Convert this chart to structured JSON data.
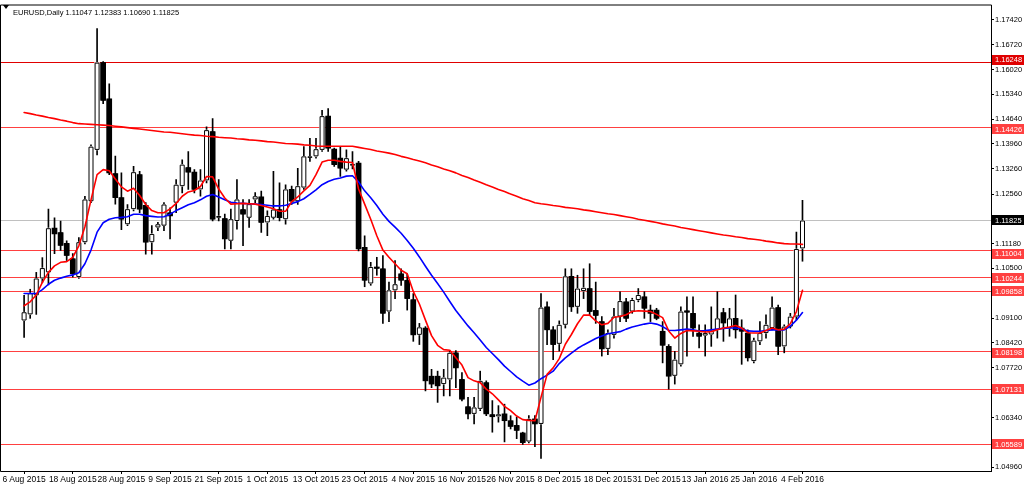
{
  "chart_data": {
    "type": "candlestick",
    "title": "EURUSD,Daily 1.11047 1.12383 1.10690 1.11825",
    "categories": [
      "6 Aug 2015",
      null,
      null,
      null,
      null,
      null,
      null,
      null,
      "18 Aug 2015",
      null,
      null,
      null,
      null,
      null,
      null,
      null,
      "28 Aug 2015",
      null,
      null,
      null,
      null,
      null,
      null,
      null,
      "9 Sep 2015",
      null,
      null,
      null,
      null,
      null,
      null,
      null,
      "21 Sep 2015",
      null,
      null,
      null,
      null,
      null,
      null,
      null,
      "1 Oct 2015",
      null,
      null,
      null,
      null,
      null,
      null,
      null,
      "13 Oct 2015",
      null,
      null,
      null,
      null,
      null,
      null,
      null,
      "23 Oct 2015",
      null,
      null,
      null,
      null,
      null,
      null,
      null,
      "4 Nov 2015",
      null,
      null,
      null,
      null,
      null,
      null,
      null,
      "16 Nov 2015",
      null,
      null,
      null,
      null,
      null,
      null,
      null,
      "26 Nov 2015",
      null,
      null,
      null,
      null,
      null,
      null,
      null,
      "8 Dec 2015",
      null,
      null,
      null,
      null,
      null,
      null,
      null,
      "18 Dec 2015",
      null,
      null,
      null,
      null,
      null,
      null,
      null,
      "31 Dec 2015",
      null,
      null,
      null,
      null,
      null,
      null,
      null,
      "13 Jan 2016",
      null,
      null,
      null,
      null,
      null,
      null,
      null,
      "25 Jan 2016",
      null,
      null,
      null,
      null,
      null,
      null,
      null,
      "4 Feb 2016"
    ],
    "ohlc": [
      [
        1.0904,
        1.0974,
        1.0857,
        1.0927
      ],
      [
        1.0921,
        1.0991,
        1.091,
        1.098
      ],
      [
        1.0974,
        1.1038,
        1.0921,
        1.1021
      ],
      [
        1.1021,
        1.1079,
        1.1009,
        1.105
      ],
      [
        1.1038,
        1.1214,
        1.1003,
        1.1161
      ],
      [
        1.1161,
        1.119,
        1.109,
        1.1145
      ],
      [
        1.1149,
        1.1181,
        1.1099,
        1.1113
      ],
      [
        1.1119,
        1.1126,
        1.1071,
        1.1085
      ],
      [
        1.1076,
        1.109,
        1.1025,
        1.1034
      ],
      [
        1.1025,
        1.1135,
        1.1021,
        1.1122
      ],
      [
        1.1122,
        1.125,
        1.1117,
        1.1241
      ],
      [
        1.1236,
        1.1393,
        1.1232,
        1.1388
      ],
      [
        1.1379,
        1.1717,
        1.1365,
        1.1622
      ],
      [
        1.1622,
        1.1625,
        1.1508,
        1.1517
      ],
      [
        1.1521,
        1.1563,
        1.131,
        1.1315
      ],
      [
        1.1313,
        1.1362,
        1.1228,
        1.1246
      ],
      [
        1.1246,
        1.1315,
        1.1157,
        1.1186
      ],
      [
        1.1172,
        1.1227,
        1.1168,
        1.1214
      ],
      [
        1.1214,
        1.1333,
        1.1209,
        1.1317
      ],
      [
        1.131,
        1.1319,
        1.1204,
        1.1214
      ],
      [
        1.1225,
        1.1232,
        1.1089,
        1.1122
      ],
      [
        1.1122,
        1.1168,
        1.1089,
        1.1145
      ],
      [
        1.1163,
        1.1177,
        1.1154,
        1.1172
      ],
      [
        1.1168,
        1.1232,
        1.1154,
        1.1227
      ],
      [
        1.1204,
        1.1218,
        1.1131,
        1.1195
      ],
      [
        1.1232,
        1.1296,
        1.1204,
        1.1282
      ],
      [
        1.1278,
        1.1351,
        1.1259,
        1.1338
      ],
      [
        1.133,
        1.1374,
        1.1269,
        1.1317
      ],
      [
        1.1317,
        1.1324,
        1.1259,
        1.1269
      ],
      [
        1.1269,
        1.1324,
        1.125,
        1.1294
      ],
      [
        1.1294,
        1.1443,
        1.1287,
        1.1434
      ],
      [
        1.143,
        1.1466,
        1.1181,
        1.1186
      ],
      [
        1.119,
        1.1296,
        1.1181,
        1.1195
      ],
      [
        1.1188,
        1.12,
        1.1103,
        1.1131
      ],
      [
        1.1126,
        1.1214,
        1.1103,
        1.1186
      ],
      [
        1.1181,
        1.1296,
        1.1158,
        1.1241
      ],
      [
        1.1213,
        1.1241,
        1.1112,
        1.12
      ],
      [
        1.119,
        1.1241,
        1.1163,
        1.1228
      ],
      [
        1.1241,
        1.126,
        1.1232,
        1.125
      ],
      [
        1.1248,
        1.1264,
        1.1149,
        1.1177
      ],
      [
        1.1177,
        1.1209,
        1.114,
        1.1195
      ],
      [
        1.119,
        1.1319,
        1.1186,
        1.1213
      ],
      [
        1.1213,
        1.1287,
        1.1181,
        1.119
      ],
      [
        1.1186,
        1.1282,
        1.1172,
        1.1269
      ],
      [
        1.1269,
        1.1278,
        1.1227,
        1.1236
      ],
      [
        1.1236,
        1.1328,
        1.1227,
        1.1278
      ],
      [
        1.1274,
        1.1388,
        1.1269,
        1.1361
      ],
      [
        1.1357,
        1.1411,
        1.1347,
        1.1361
      ],
      [
        1.1361,
        1.1411,
        1.1356,
        1.1381
      ],
      [
        1.1379,
        1.1489,
        1.1375,
        1.1473
      ],
      [
        1.1473,
        1.1494,
        1.1375,
        1.1384
      ],
      [
        1.1381,
        1.1384,
        1.1333,
        1.1338
      ],
      [
        1.1356,
        1.1387,
        1.1305,
        1.1328
      ],
      [
        1.1324,
        1.1379,
        1.132,
        1.1356
      ],
      [
        1.1335,
        1.1374,
        1.1326,
        1.134
      ],
      [
        1.1342,
        1.1347,
        1.1098,
        1.1103
      ],
      [
        1.1108,
        1.114,
        1.0998,
        1.1016
      ],
      [
        1.1007,
        1.1066,
        1.1002,
        1.1053
      ],
      [
        1.1053,
        1.108,
        1.103,
        1.1049
      ],
      [
        1.1048,
        1.1085,
        1.0896,
        1.0924
      ],
      [
        1.0929,
        1.1011,
        1.0901,
        1.0988
      ],
      [
        1.0988,
        1.1071,
        1.0965,
        1.1005
      ],
      [
        1.1034,
        1.1048,
        1.1002,
        1.1016
      ],
      [
        1.1016,
        1.1034,
        1.0933,
        1.0965
      ],
      [
        1.0962,
        1.0979,
        1.0846,
        1.0864
      ],
      [
        1.0864,
        1.0896,
        1.0837,
        1.0885
      ],
      [
        1.0883,
        1.0887,
        1.0708,
        1.0736
      ],
      [
        1.0749,
        1.0768,
        1.0717,
        1.0727
      ],
      [
        1.0749,
        1.0763,
        1.0676,
        1.0722
      ],
      [
        1.0727,
        1.0768,
        1.0694,
        1.0745
      ],
      [
        1.074,
        1.082,
        1.0694,
        1.0814
      ],
      [
        1.0814,
        1.082,
        1.0717,
        1.0772
      ],
      [
        1.074,
        1.0759,
        1.068,
        1.0685
      ],
      [
        1.0664,
        1.069,
        1.063,
        1.0644
      ],
      [
        1.0644,
        1.069,
        1.0616,
        1.0662
      ],
      [
        1.0658,
        1.0763,
        1.0653,
        1.0736
      ],
      [
        1.0731,
        1.0736,
        1.0639,
        1.0644
      ],
      [
        1.0642,
        1.0681,
        1.0593,
        1.0636
      ],
      [
        1.0637,
        1.0667,
        1.0621,
        1.0643
      ],
      [
        1.0644,
        1.0671,
        1.0566,
        1.0625
      ],
      [
        1.0625,
        1.0639,
        1.0602,
        1.0609
      ],
      [
        1.0612,
        1.0635,
        1.0575,
        1.0598
      ],
      [
        1.0591,
        1.0593,
        1.0559,
        1.0564
      ],
      [
        1.0567,
        1.0639,
        1.0563,
        1.063
      ],
      [
        1.063,
        1.0639,
        1.0553,
        1.0616
      ],
      [
        1.0616,
        1.0979,
        1.052,
        1.094
      ],
      [
        1.0942,
        1.0956,
        1.0837,
        1.0878
      ],
      [
        1.0878,
        1.0887,
        1.0795,
        1.0837
      ],
      [
        1.0839,
        1.0903,
        1.0819,
        1.0892
      ],
      [
        1.0892,
        1.1048,
        1.0883,
        1.1027
      ],
      [
        1.1027,
        1.1048,
        1.0929,
        1.0942
      ],
      [
        1.0942,
        1.103,
        1.0924,
        1.0993
      ],
      [
        1.0986,
        1.1048,
        1.0965,
        1.0995
      ],
      [
        1.0993,
        1.1062,
        1.092,
        1.0929
      ],
      [
        1.0932,
        1.1011,
        1.0896,
        1.0918
      ],
      [
        1.0901,
        1.0915,
        1.0805,
        1.0825
      ],
      [
        1.0825,
        1.0878,
        1.0809,
        1.0869
      ],
      [
        1.0864,
        1.0938,
        1.0855,
        1.0915
      ],
      [
        1.0915,
        1.0984,
        1.0901,
        1.0958
      ],
      [
        1.0956,
        1.0966,
        1.0901,
        1.091
      ],
      [
        1.0929,
        1.0966,
        1.0924,
        1.0961
      ],
      [
        1.0961,
        1.0993,
        1.0956,
        1.0975
      ],
      [
        1.097,
        1.0984,
        1.091,
        1.0938
      ],
      [
        1.0933,
        1.0947,
        1.0901,
        1.0924
      ],
      [
        1.0933,
        1.0938,
        1.0906,
        1.091
      ],
      [
        1.0874,
        1.0901,
        1.0786,
        1.0835
      ],
      [
        1.0832,
        1.0837,
        1.0713,
        1.0749
      ],
      [
        1.075,
        1.0818,
        1.0727,
        1.0795
      ],
      [
        1.0782,
        1.0942,
        1.0777,
        1.0929
      ],
      [
        1.0931,
        1.097,
        1.0805,
        1.0927
      ],
      [
        1.0924,
        1.097,
        1.086,
        1.0883
      ],
      [
        1.0869,
        1.0892,
        1.0828,
        1.086
      ],
      [
        1.0862,
        1.0892,
        1.0805,
        1.0869
      ],
      [
        1.0865,
        1.0942,
        1.0832,
        1.0875
      ],
      [
        1.0878,
        1.0984,
        1.0855,
        1.091
      ],
      [
        1.0926,
        1.0938,
        1.0846,
        1.0897
      ],
      [
        1.0883,
        1.0938,
        1.086,
        1.091
      ],
      [
        1.091,
        1.0975,
        1.0855,
        1.0878
      ],
      [
        1.0883,
        1.0906,
        1.0782,
        1.0874
      ],
      [
        1.0869,
        1.0878,
        1.0791,
        1.08
      ],
      [
        1.0791,
        1.0855,
        1.0786,
        1.0848
      ],
      [
        1.0846,
        1.0901,
        1.0837,
        1.0869
      ],
      [
        1.0869,
        1.092,
        1.0855,
        1.0892
      ],
      [
        1.0883,
        1.097,
        1.0878,
        1.094
      ],
      [
        1.094,
        1.0947,
        1.0809,
        1.0832
      ],
      [
        1.0832,
        1.0892,
        1.0814,
        1.0887
      ],
      [
        1.0887,
        1.0924,
        1.0883,
        1.0915
      ],
      [
        1.0915,
        1.115,
        1.0906,
        1.1103
      ],
      [
        1.11047,
        1.12383,
        1.1069,
        1.11825
      ]
    ],
    "colors": [
      "#ffffff",
      "#ffffff",
      "#ffffff",
      "#ffffff",
      "#ffffff",
      "#000000",
      "#000000",
      "#000000",
      "#000000",
      "#ffffff",
      "#ffffff",
      "#ffffff",
      "#ffffff",
      "#000000",
      "#000000",
      "#000000",
      "#000000",
      "#ffffff",
      "#ffffff",
      "#000000",
      "#000000",
      "#ffffff",
      "#ffffff",
      "#ffffff",
      "#000000",
      "#ffffff",
      "#ffffff",
      "#000000",
      "#000000",
      "#ffffff",
      "#ffffff",
      "#000000",
      "#ffffff",
      "#000000",
      "#ffffff",
      "#ffffff",
      "#000000",
      "#ffffff",
      "#ffffff",
      "#000000",
      "#ffffff",
      "#ffffff",
      "#000000",
      "#ffffff",
      "#000000",
      "#ffffff",
      "#ffffff",
      "#ffffff",
      "#ffffff",
      "#ffffff",
      "#000000",
      "#000000",
      "#000000",
      "#ffffff",
      "#ffffff",
      "#000000",
      "#000000",
      "#ffffff",
      "#000000",
      "#000000",
      "#ffffff",
      "#ffffff",
      "#000000",
      "#000000",
      "#000000",
      "#ffffff",
      "#000000",
      "#000000",
      "#000000",
      "#ffffff",
      "#ffffff",
      "#000000",
      "#000000",
      "#000000",
      "#ffffff",
      "#ffffff",
      "#000000",
      "#000000",
      "#ffffff",
      "#000000",
      "#000000",
      "#000000",
      "#000000",
      "#ffffff",
      "#000000",
      "#ffffff",
      "#000000",
      "#000000",
      "#ffffff",
      "#ffffff",
      "#000000",
      "#ffffff",
      "#ffffff",
      "#000000",
      "#000000",
      "#000000",
      "#ffffff",
      "#ffffff",
      "#ffffff",
      "#000000",
      "#ffffff",
      "#ffffff",
      "#000000",
      "#000000",
      "#000000",
      "#000000",
      "#000000",
      "#ffffff",
      "#ffffff",
      "#000000",
      "#000000",
      "#000000",
      "#ffffff",
      "#ffffff",
      "#ffffff",
      "#000000",
      "#ffffff",
      "#000000",
      "#000000",
      "#000000",
      "#ffffff",
      "#ffffff",
      "#ffffff",
      "#ffffff",
      "#000000",
      "#ffffff",
      "#ffffff",
      "#ffffff",
      "#ffffff"
    ],
    "series": [
      {
        "type": "line",
        "color": "#ff0000",
        "values": [
          1.1483,
          1.148,
          1.1476,
          1.1473,
          1.1469,
          1.1466,
          1.1462,
          1.1459,
          1.1455,
          1.1452,
          1.1451,
          1.145,
          1.1449,
          1.1448,
          1.1447,
          1.1445,
          1.1443,
          1.1441,
          1.1439,
          1.1437,
          1.1435,
          1.1433,
          1.1431,
          1.1429,
          1.1428,
          1.1426,
          1.1424,
          1.1422,
          1.142,
          1.1419,
          1.1417,
          1.1416,
          1.1414,
          1.1413,
          1.1412,
          1.141,
          1.1409,
          1.1407,
          1.1406,
          1.1404,
          1.1402,
          1.1401,
          1.1399,
          1.1397,
          1.1396,
          1.1395,
          1.1393,
          1.1392,
          1.139,
          1.1389,
          1.1389,
          1.1389,
          1.1389,
          1.1389,
          1.1389,
          1.1386,
          1.1383,
          1.138,
          1.1376,
          1.1373,
          1.137,
          1.1366,
          1.1361,
          1.1357,
          1.1352,
          1.1348,
          1.1343,
          1.1337,
          1.1332,
          1.1326,
          1.1321,
          1.1315,
          1.1308,
          1.1302,
          1.1295,
          1.1289,
          1.1282,
          1.1276,
          1.1269,
          1.1263,
          1.1256,
          1.125,
          1.1243,
          1.1238,
          1.1232,
          1.1229,
          1.1227,
          1.1224,
          1.1222,
          1.1219,
          1.1217,
          1.1215,
          1.1212,
          1.121,
          1.1207,
          1.1204,
          1.1201,
          1.1199,
          1.1196,
          1.1193,
          1.119,
          1.1186,
          1.1183,
          1.118,
          1.1177,
          1.1173,
          1.117,
          1.1167,
          1.1163,
          1.116,
          1.1157,
          1.1154,
          1.1151,
          1.1148,
          1.1145,
          1.1142,
          1.114,
          1.1137,
          1.1135,
          1.1132,
          1.113,
          1.1128,
          1.1125,
          1.1123,
          1.112,
          1.1118,
          1.1117,
          1.1117,
          1.1116
        ]
      },
      {
        "type": "line",
        "color": "#ff0000",
        "values": [
          1.0945,
          1.0956,
          1.0975,
          1.101,
          1.1038,
          1.1056,
          1.1066,
          1.1068,
          1.108,
          1.1112,
          1.1165,
          1.124,
          1.131,
          1.1324,
          1.1321,
          1.1298,
          1.1276,
          1.1264,
          1.1272,
          1.1252,
          1.1227,
          1.121,
          1.1204,
          1.1204,
          1.1215,
          1.123,
          1.125,
          1.1262,
          1.1266,
          1.1277,
          1.1305,
          1.1304,
          1.127,
          1.1245,
          1.1228,
          1.1229,
          1.123,
          1.1229,
          1.1228,
          1.1224,
          1.122,
          1.1215,
          1.1208,
          1.1208,
          1.1235,
          1.1248,
          1.1265,
          1.128,
          1.131,
          1.1345,
          1.135,
          1.135,
          1.1347,
          1.1345,
          1.1344,
          1.127,
          1.1228,
          1.1186,
          1.114,
          1.11,
          1.108,
          1.1062,
          1.1044,
          1.1034,
          1.0985,
          1.095,
          1.0905,
          1.0862,
          1.0835,
          1.0823,
          1.0821,
          1.08,
          1.078,
          1.0745,
          1.0736,
          1.0731,
          1.0713,
          1.07,
          1.0683,
          1.0665,
          1.0653,
          1.0638,
          1.0628,
          1.0626,
          1.0625,
          1.069,
          1.0754,
          1.0772,
          1.0798,
          1.0838,
          1.0865,
          1.0895,
          1.0919,
          1.0919,
          1.0903,
          1.0892,
          1.0896,
          1.0913,
          1.0915,
          1.092,
          1.0929,
          1.0931,
          1.093,
          1.0929,
          1.0921,
          1.0912,
          1.0875,
          1.0855,
          1.0868,
          1.0876,
          1.0875,
          1.0874,
          1.0872,
          1.0873,
          1.0878,
          1.0883,
          1.0886,
          1.089,
          1.0883,
          1.087,
          1.0869,
          1.0869,
          1.0876,
          1.0883,
          1.0878,
          1.088,
          1.0895,
          1.0929,
          1.0988
        ]
      },
      {
        "type": "line",
        "color": "#0000ff",
        "values": [
          1.0979,
          1.0979,
          1.0979,
          1.099,
          1.1005,
          1.1016,
          1.1022,
          1.1027,
          1.1031,
          1.1037,
          1.1062,
          1.11,
          1.115,
          1.1176,
          1.1186,
          1.119,
          1.1191,
          1.1193,
          1.12,
          1.12,
          1.1196,
          1.1194,
          1.1192,
          1.1193,
          1.12,
          1.121,
          1.1218,
          1.1226,
          1.1232,
          1.124,
          1.125,
          1.1255,
          1.1248,
          1.124,
          1.1233,
          1.1231,
          1.123,
          1.1229,
          1.1228,
          1.1227,
          1.1225,
          1.1223,
          1.1223,
          1.1225,
          1.123,
          1.1235,
          1.1243,
          1.1255,
          1.1268,
          1.1282,
          1.1291,
          1.1297,
          1.1301,
          1.1306,
          1.1307,
          1.129,
          1.1265,
          1.1246,
          1.1224,
          1.12,
          1.118,
          1.1164,
          1.1147,
          1.1127,
          1.1105,
          1.1081,
          1.1055,
          1.103,
          1.1007,
          1.0983,
          1.0957,
          1.0932,
          1.091,
          1.0889,
          1.087,
          1.085,
          1.0829,
          1.0812,
          1.0795,
          1.0777,
          1.0762,
          1.0747,
          1.0735,
          1.0724,
          1.073,
          1.0742,
          1.0752,
          1.0763,
          1.0784,
          1.08,
          1.0813,
          1.0826,
          1.0836,
          1.0845,
          1.0854,
          1.0861,
          1.0867,
          1.087,
          1.0873,
          1.088,
          1.0886,
          1.089,
          1.0894,
          1.0897,
          1.0894,
          1.0887,
          1.0877,
          1.0876,
          1.0878,
          1.088,
          1.0878,
          1.0875,
          1.0876,
          1.0878,
          1.088,
          1.0882,
          1.0883,
          1.0883,
          1.0881,
          1.0875,
          1.0874,
          1.0874,
          1.0876,
          1.0878,
          1.0878,
          1.0878,
          1.0888,
          1.0905,
          1.0926
        ]
      }
    ],
    "ylim": [
      1.0485,
      1.1781
    ],
    "yticks": [
      {
        "value": 1.0496,
        "label": "1.04960"
      },
      {
        "value": 1.0634,
        "label": "1.06340"
      },
      {
        "value": 1.0772,
        "label": "1.07720"
      },
      {
        "value": 1.0842,
        "label": "1.08420"
      },
      {
        "value": 1.091,
        "label": "1.09100"
      },
      {
        "value": 1.105,
        "label": "1.10500"
      },
      {
        "value": 1.1118,
        "label": "1.11180"
      },
      {
        "value": 1.1256,
        "label": "1.12560"
      },
      {
        "value": 1.1326,
        "label": "1.13260"
      },
      {
        "value": 1.1396,
        "label": "1.13960"
      },
      {
        "value": 1.1464,
        "label": "1.14640"
      },
      {
        "value": 1.1534,
        "label": "1.15340"
      },
      {
        "value": 1.1602,
        "label": "1.16020"
      },
      {
        "value": 1.1672,
        "label": "1.16720"
      },
      {
        "value": 1.1742,
        "label": "1.17420"
      }
    ],
    "ref_lines": [
      {
        "axis": "y",
        "value": 1.16248,
        "label": "1.16248",
        "color": "#e00000"
      },
      {
        "axis": "y",
        "value": 1.14426,
        "label": "1.14426",
        "color": "#ff4040"
      },
      {
        "axis": "y",
        "value": 1.11825,
        "label": "1.11825",
        "color": "#c0c0c0"
      },
      {
        "axis": "y",
        "value": 1.11004,
        "label": "1.11004",
        "color": "#ff4040"
      },
      {
        "axis": "y",
        "value": 1.10244,
        "label": "1.10244",
        "color": "#ff4040"
      },
      {
        "axis": "y",
        "value": 1.09858,
        "label": "1.09858",
        "color": "#ff4040"
      },
      {
        "axis": "y",
        "value": 1.08198,
        "label": "1.08198",
        "color": "#ff4040"
      },
      {
        "axis": "y",
        "value": 1.07131,
        "label": "1.07131",
        "color": "#ff4040"
      },
      {
        "axis": "y",
        "value": 1.05589,
        "label": "1.05589",
        "color": "#ff4040"
      }
    ],
    "grid": false,
    "legend": false,
    "marker": "none"
  }
}
